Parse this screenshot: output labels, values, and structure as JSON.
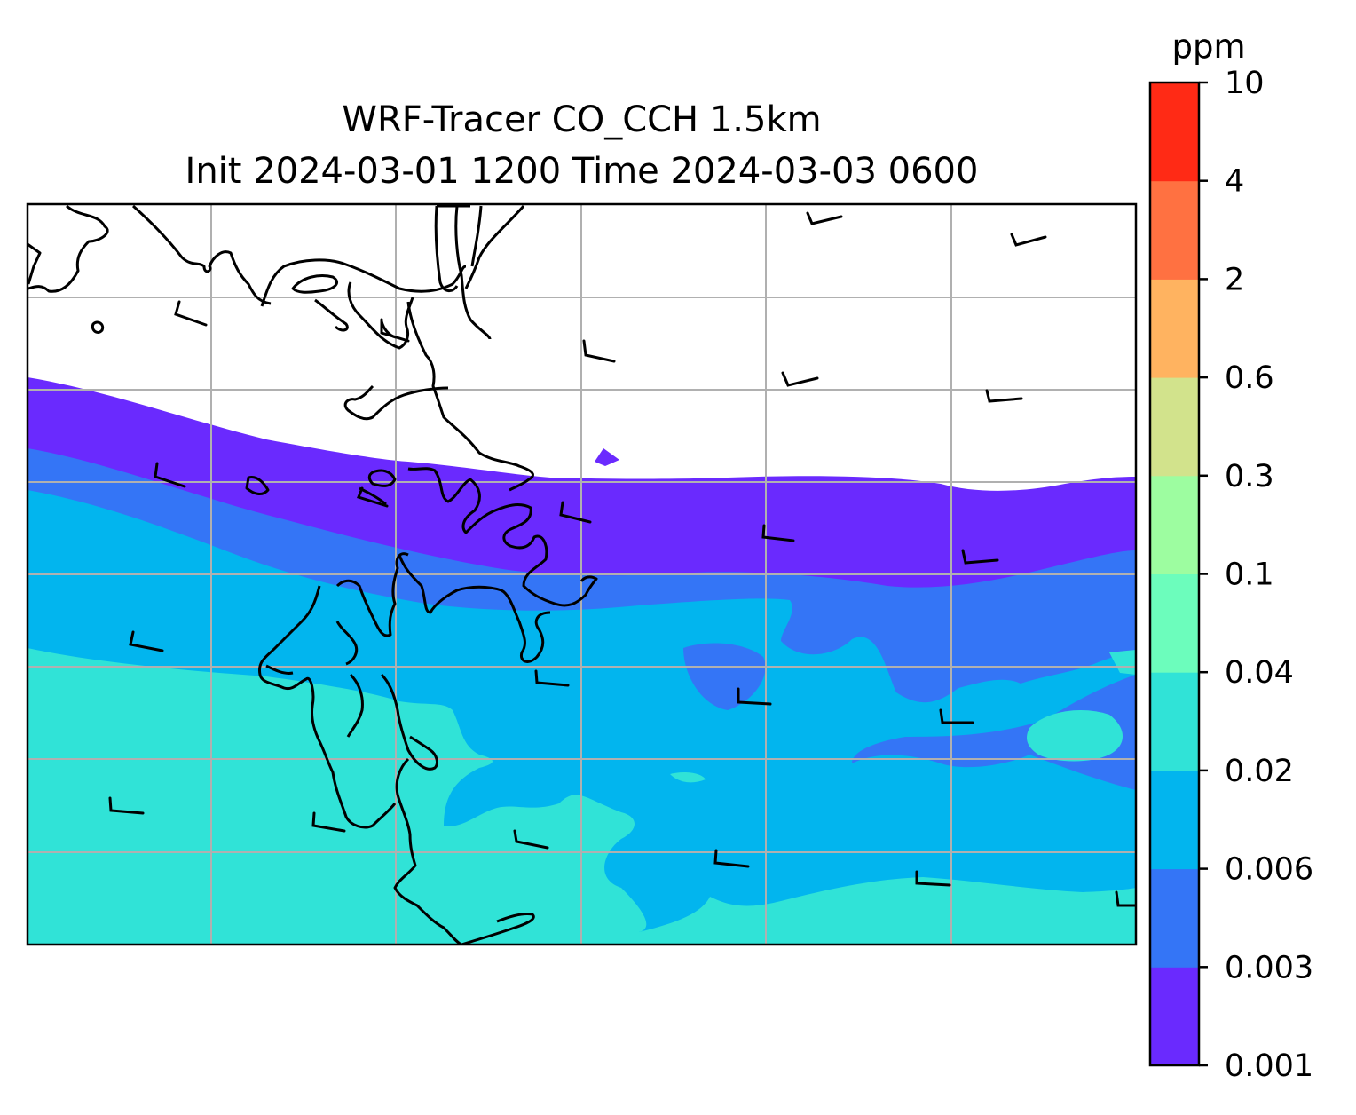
{
  "title": {
    "line1": "WRF-Tracer CO_CCH 1.5km",
    "line2": "Init 2024-03-01 1200 Time 2024-03-03 0600"
  },
  "colorbar": {
    "unit": "ppm",
    "levels": [
      "0.001",
      "0.003",
      "0.006",
      "0.02",
      "0.04",
      "0.1",
      "0.3",
      "0.6",
      "2",
      "4",
      "10"
    ],
    "colors": [
      "#6a2afe",
      "#3475f6",
      "#02b5ee",
      "#30e3d7",
      "#6cfdbc",
      "#9dfda0",
      "#d2e38c",
      "#ffb360",
      "#ff7141",
      "#ff2a15"
    ]
  },
  "map": {
    "shaded_bands_ppm": [
      "0.001-0.003",
      "0.003-0.006",
      "0.006-0.02",
      "0.02-0.04"
    ],
    "gridlines": true,
    "coastlines": true,
    "wind_barbs": true
  }
}
